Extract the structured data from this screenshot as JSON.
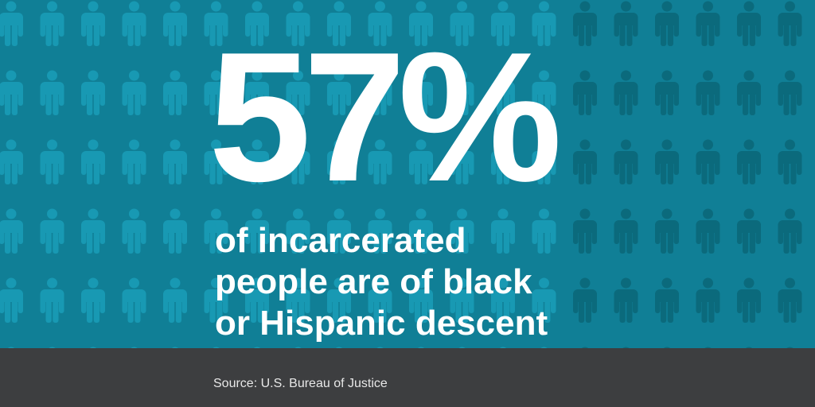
{
  "stat": {
    "value": "57%",
    "caption_lines": [
      "of incarcerated",
      "people are of black",
      "or Hispanic descent"
    ]
  },
  "footer": {
    "source": "Source: U.S. Bureau of Justice"
  },
  "pattern": {
    "icon": "person-icon",
    "colors": {
      "background": "#107f96",
      "light_figure": "#1899b3",
      "dark_figure": "#0b6a7c",
      "footer": "#3d3e40",
      "text": "#ffffff"
    }
  }
}
